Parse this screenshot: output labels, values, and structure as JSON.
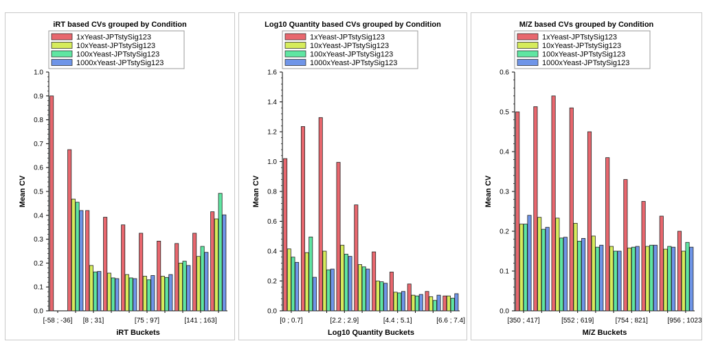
{
  "colors": {
    "1xYeast-JPTstySig123": "#e8676e",
    "10xYeast-JPTstySig123": "#d6ec5c",
    "100xYeast-JPTstySig123": "#5fe6a2",
    "1000xYeast-JPTstySig123": "#6f95e8"
  },
  "chart_data": [
    {
      "type": "bar",
      "title": "iRT based CVs grouped by Condition",
      "xlabel": "iRT Buckets",
      "ylabel": "Mean CV",
      "ylim": [
        0,
        1.0
      ],
      "yticks": [
        "0.0",
        "0.1",
        "0.2",
        "0.3",
        "0.4",
        "0.5",
        "0.6",
        "0.7",
        "0.8",
        "0.9",
        "1.0"
      ],
      "xtick_labels": [
        "[-58 ; -36]",
        "[8 ; 31]",
        "[75 ; 97]",
        "[141 ; 163]"
      ],
      "xtick_indices": [
        0,
        2,
        5,
        8
      ],
      "legend_position": "top",
      "series": [
        {
          "name": "1xYeast-JPTstySig123",
          "values": [
            0.9,
            0.675,
            0.42,
            0.392,
            0.36,
            0.325,
            0.292,
            0.282,
            0.325,
            0.415
          ]
        },
        {
          "name": "10xYeast-JPTstySig123",
          "values": [
            null,
            0.468,
            0.19,
            0.158,
            0.152,
            0.145,
            0.145,
            0.2,
            0.228,
            0.385
          ]
        },
        {
          "name": "100xYeast-JPTstySig123",
          "values": [
            null,
            0.455,
            0.163,
            0.138,
            0.138,
            0.13,
            0.14,
            0.208,
            0.27,
            0.492
          ]
        },
        {
          "name": "1000xYeast-JPTstySig123",
          "values": [
            null,
            0.42,
            0.165,
            0.135,
            0.135,
            0.148,
            0.152,
            0.19,
            0.245,
            0.402
          ]
        }
      ]
    },
    {
      "type": "bar",
      "title": "Log10 Quantity based CVs grouped by Condition",
      "xlabel": "Log10 Quantity Buckets",
      "ylabel": "Mean CV",
      "ylim": [
        0,
        1.6
      ],
      "yticks": [
        "0.0",
        "0.2",
        "0.4",
        "0.6",
        "0.8",
        "1.0",
        "1.2",
        "1.4",
        "1.6"
      ],
      "xtick_labels": [
        "[0 ; 0.7]",
        "[2.2 ; 2.9]",
        "[4.4 ; 5.1]",
        "[6.6 ; 7.4]"
      ],
      "xtick_indices": [
        0,
        3,
        6,
        9
      ],
      "legend_position": "top",
      "series": [
        {
          "name": "1xYeast-JPTstySig123",
          "values": [
            1.02,
            1.235,
            1.295,
            0.995,
            0.71,
            0.395,
            0.26,
            0.18,
            0.13,
            0.1
          ]
        },
        {
          "name": "10xYeast-JPTstySig123",
          "values": [
            0.415,
            0.39,
            0.4,
            0.44,
            0.31,
            0.2,
            0.125,
            0.105,
            0.095,
            0.1
          ]
        },
        {
          "name": "100xYeast-JPTstySig123",
          "values": [
            0.36,
            0.495,
            0.275,
            0.38,
            0.295,
            0.195,
            0.12,
            0.1,
            0.07,
            0.085
          ]
        },
        {
          "name": "1000xYeast-JPTstySig123",
          "values": [
            0.325,
            0.225,
            0.28,
            0.365,
            0.28,
            0.185,
            0.13,
            0.11,
            0.105,
            0.115
          ]
        }
      ]
    },
    {
      "type": "bar",
      "title": "M/Z based CVs grouped by Condition",
      "xlabel": "M/Z Buckets",
      "ylabel": "Mean CV",
      "ylim": [
        0,
        0.6
      ],
      "yticks": [
        "0.0",
        "0.1",
        "0.2",
        "0.3",
        "0.4",
        "0.5",
        "0.6"
      ],
      "xtick_labels": [
        "[350 ; 417]",
        "[552 ; 619]",
        "[754 ; 821]",
        "[956 ; 1023]"
      ],
      "xtick_indices": [
        0,
        3,
        6,
        9
      ],
      "legend_position": "top",
      "series": [
        {
          "name": "1xYeast-JPTstySig123",
          "values": [
            0.5,
            0.513,
            0.54,
            0.51,
            0.45,
            0.385,
            0.33,
            0.275,
            0.238,
            0.2
          ]
        },
        {
          "name": "10xYeast-JPTstySig123",
          "values": [
            0.218,
            0.235,
            0.233,
            0.22,
            0.188,
            0.162,
            0.158,
            0.162,
            0.155,
            0.15
          ]
        },
        {
          "name": "100xYeast-JPTstySig123",
          "values": [
            0.218,
            0.205,
            0.183,
            0.175,
            0.16,
            0.15,
            0.16,
            0.165,
            0.162,
            0.172
          ]
        },
        {
          "name": "1000xYeast-JPTstySig123",
          "values": [
            0.24,
            0.21,
            0.185,
            0.182,
            0.165,
            0.15,
            0.162,
            0.165,
            0.16,
            0.16
          ]
        }
      ]
    }
  ]
}
